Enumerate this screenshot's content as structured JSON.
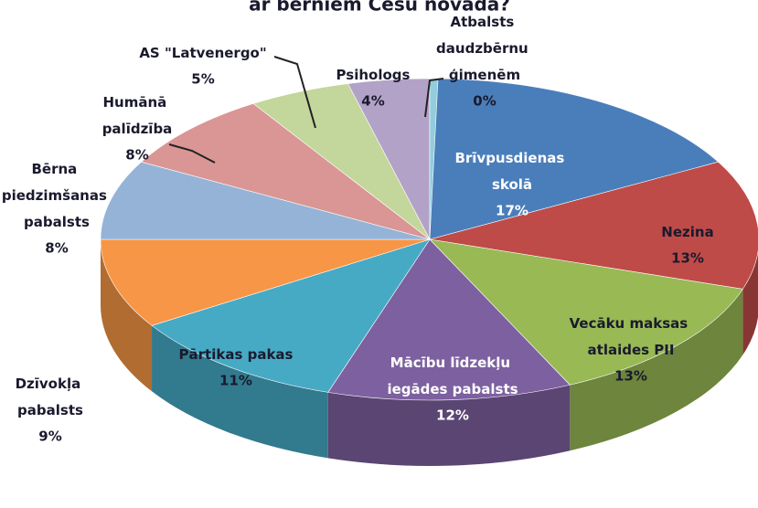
{
  "chart_data": {
    "type": "pie3d",
    "title": "ar bērniem Cēsu novadā?",
    "categories": [
      "Brīvpusdienas skolā",
      "Nezina",
      "Vecāku maksas atlaides PII",
      "Mācību līdzekļu iegādes pabalsts",
      "Pārtikas pakas",
      "Dzīvokļa pabalsts",
      "Bērna piedzimšanas pabalsts",
      "Humānā palīdzība",
      "AS \"Latvenergo\"",
      "Psihologs",
      "Atbalsts daudzbērnu ģimenēm"
    ],
    "values": [
      17,
      13,
      13,
      12,
      11,
      9,
      8,
      8,
      5,
      4,
      0
    ],
    "value_labels": [
      "17%",
      "13%",
      "13%",
      "12%",
      "11%",
      "9%",
      "8%",
      "8%",
      "5%",
      "4%",
      "0%"
    ],
    "colors": [
      "#4a7ebb",
      "#be4b48",
      "#98b954",
      "#7d60a0",
      "#46aac5",
      "#f79646",
      "#95b3d7",
      "#d99694",
      "#c3d69b",
      "#b3a2c7",
      "#93cddd"
    ]
  }
}
